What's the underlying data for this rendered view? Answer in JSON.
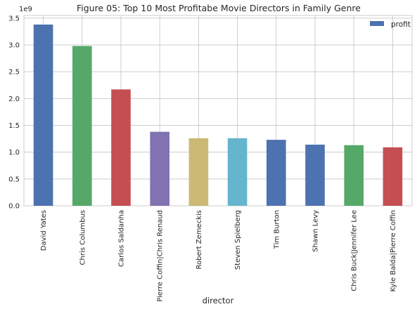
{
  "chart_data": {
    "type": "bar",
    "title": "Figure 05: Top 10 Most Profitabe Movie Directors in Family Genre",
    "xlabel": "director",
    "ylabel": "",
    "y_offset_label": "1e9",
    "categories": [
      "David Yates",
      "Chris Columbus",
      "Carlos Saldanha",
      "Pierre Coffin|Chris Renaud",
      "Robert Zemeckis",
      "Steven Spielberg",
      "Tim Burton",
      "Shawn Levy",
      "Chris Buck|Jennifer Lee",
      "Kyle Balda|Pierre Coffin"
    ],
    "series": [
      {
        "name": "profit",
        "values": [
          3.38,
          2.98,
          2.17,
          1.38,
          1.26,
          1.26,
          1.23,
          1.14,
          1.13,
          1.09
        ]
      }
    ],
    "bar_colors": [
      "#4C72B0",
      "#55A868",
      "#C44E52",
      "#8172B2",
      "#CCB974",
      "#64B5CD",
      "#4C72B0",
      "#4C72B0",
      "#55A868",
      "#C44E52"
    ],
    "yticks": [
      "0.0",
      "0.5",
      "1.0",
      "1.5",
      "2.0",
      "2.5",
      "3.0",
      "3.5"
    ],
    "ylim": [
      0,
      3.55
    ],
    "grid": true,
    "legend_position": "top-right",
    "legend_color": "#4C72B0"
  }
}
